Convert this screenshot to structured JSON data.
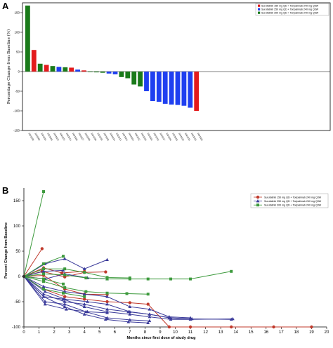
{
  "panels": {
    "a_label": "A",
    "b_label": "B"
  },
  "colors": {
    "red": "#e31a1c",
    "blue": "#1f3ff0",
    "green": "#1a7a1a",
    "redLine": "#c0392b",
    "blueLine": "#3b3b9a",
    "greenLine": "#3d9a3d"
  },
  "chart_data": [
    {
      "type": "bar",
      "panel": "A",
      "title": "",
      "xlabel": "",
      "ylabel": "Percentage Change from Baseline (%)",
      "ylim": [
        -150,
        175
      ],
      "yticks": [
        -150,
        -100,
        -50,
        0,
        50,
        100,
        150
      ],
      "legend": {
        "position": "top-right",
        "entries": [
          {
            "label": "Surufatinib 150 mg QD + Toripalimab 240 mg Q3W",
            "color": "red"
          },
          {
            "label": "Surufatinib 250 mg QD + Toripalimab 240 mg Q3W",
            "color": "blue"
          },
          {
            "label": "Surufatinib 300 mg QD + Toripalimab 240 mg Q3W",
            "color": "green"
          }
        ]
      },
      "bars": [
        {
          "id": "1001005",
          "value": 168,
          "color": "green"
        },
        {
          "id": "1001002",
          "value": 55,
          "color": "red"
        },
        {
          "id": "1001031",
          "value": 20,
          "color": "green"
        },
        {
          "id": "1001025",
          "value": 17,
          "color": "red"
        },
        {
          "id": "1001023",
          "value": 14,
          "color": "green"
        },
        {
          "id": "1001021",
          "value": 12,
          "color": "blue"
        },
        {
          "id": "1001014",
          "value": 11,
          "color": "green"
        },
        {
          "id": "1001006",
          "value": 10,
          "color": "red"
        },
        {
          "id": "1001027",
          "value": 5,
          "color": "blue"
        },
        {
          "id": "1001009",
          "value": 3,
          "color": "red"
        },
        {
          "id": "1001030",
          "value": -1,
          "color": "green"
        },
        {
          "id": "1001032",
          "value": -2,
          "color": "green"
        },
        {
          "id": "1001028",
          "value": -3,
          "color": "green"
        },
        {
          "id": "1001034",
          "value": -5,
          "color": "blue"
        },
        {
          "id": "1001013",
          "value": -7,
          "color": "blue"
        },
        {
          "id": "1001024",
          "value": -14,
          "color": "green"
        },
        {
          "id": "1001004",
          "value": -17,
          "color": "green"
        },
        {
          "id": "1001012",
          "value": -33,
          "color": "green"
        },
        {
          "id": "1001033",
          "value": -38,
          "color": "green"
        },
        {
          "id": "1001001",
          "value": -50,
          "color": "blue"
        },
        {
          "id": "1001016",
          "value": -75,
          "color": "blue"
        },
        {
          "id": "1001017",
          "value": -77,
          "color": "blue"
        },
        {
          "id": "1001020",
          "value": -82,
          "color": "blue"
        },
        {
          "id": "1001019",
          "value": -84,
          "color": "blue"
        },
        {
          "id": "1001018",
          "value": -85,
          "color": "blue"
        },
        {
          "id": "1001015",
          "value": -87,
          "color": "blue"
        },
        {
          "id": "1001010",
          "value": -92,
          "color": "blue"
        },
        {
          "id": "1001003",
          "value": -100,
          "color": "red"
        }
      ]
    },
    {
      "type": "line",
      "panel": "B",
      "title": "",
      "xlabel": "Months since first dose of study drug",
      "ylabel": "Percent Change from Baseline",
      "xlim": [
        0,
        20
      ],
      "ylim": [
        -100,
        175
      ],
      "xticks": [
        0,
        1,
        2,
        3,
        4,
        5,
        6,
        7,
        8,
        9,
        10,
        11,
        12,
        13,
        14,
        15,
        16,
        17,
        18,
        19,
        20
      ],
      "yticks": [
        -100,
        -50,
        0,
        50,
        100,
        150
      ],
      "legend": {
        "position": "top-right",
        "entries": [
          {
            "label": "Surufatinib 150 mg QD + Toripalimab 240 mg Q3W",
            "color": "redLine",
            "marker": "circle"
          },
          {
            "label": "Surufatinib 250 mg QD + Toripalimab 240 mg Q3W",
            "color": "blueLine",
            "marker": "triangle"
          },
          {
            "label": "Surufatinib 300 mg QD + Toripalimab 240 mg Q3W",
            "color": "greenLine",
            "marker": "square"
          }
        ]
      },
      "series": [
        {
          "color": "redLine",
          "marker": "circle",
          "x": [
            0,
            1.2
          ],
          "y": [
            0,
            55
          ]
        },
        {
          "color": "redLine",
          "marker": "circle",
          "x": [
            0,
            1.3,
            2.5,
            4
          ],
          "y": [
            0,
            17,
            7,
            10
          ]
        },
        {
          "color": "redLine",
          "marker": "circle",
          "x": [
            0,
            1.2,
            2.7,
            4,
            5.4
          ],
          "y": [
            0,
            10,
            -1,
            8,
            9
          ]
        },
        {
          "color": "redLine",
          "marker": "circle",
          "x": [
            0,
            1.3,
            2.7,
            4,
            5.5
          ],
          "y": [
            0,
            2,
            -25,
            -35,
            -36
          ]
        },
        {
          "color": "redLine",
          "marker": "circle",
          "x": [
            0,
            1.3,
            2.7,
            4,
            5.5,
            7,
            8.2,
            9.6,
            11,
            13.7,
            16.5,
            19
          ],
          "y": [
            0,
            -25,
            -40,
            -45,
            -50,
            -52,
            -55,
            -100,
            -100,
            -100,
            -100,
            -100
          ]
        },
        {
          "color": "blueLine",
          "marker": "triangle",
          "x": [
            0,
            1.4,
            2.7,
            4,
            5.5
          ],
          "y": [
            0,
            25,
            35,
            15,
            33
          ]
        },
        {
          "color": "blueLine",
          "marker": "triangle",
          "x": [
            0,
            1.3,
            2.6
          ],
          "y": [
            0,
            10,
            12
          ]
        },
        {
          "color": "blueLine",
          "marker": "triangle",
          "x": [
            0,
            1.4,
            2.7,
            4.2,
            5.5
          ],
          "y": [
            0,
            -5,
            5,
            -3,
            -5
          ]
        },
        {
          "color": "blueLine",
          "marker": "triangle",
          "x": [
            0,
            1.3,
            2.7,
            4,
            5.5,
            7,
            8.3,
            9.6,
            11
          ],
          "y": [
            0,
            -20,
            -30,
            -35,
            -40,
            -60,
            -65,
            -80,
            -82
          ]
        },
        {
          "color": "blueLine",
          "marker": "triangle",
          "x": [
            0,
            1.4,
            2.7,
            4.2,
            5.5,
            7,
            8.3,
            9.6,
            11
          ],
          "y": [
            0,
            -30,
            -45,
            -50,
            -55,
            -70,
            -75,
            -82,
            -85
          ]
        },
        {
          "color": "blueLine",
          "marker": "triangle",
          "x": [
            0,
            1.3,
            2.7,
            4,
            5.5,
            6.9,
            8.3,
            9.7,
            11.1,
            13.7
          ],
          "y": [
            0,
            -35,
            -50,
            -55,
            -65,
            -70,
            -75,
            -82,
            -84,
            -85
          ]
        },
        {
          "color": "blueLine",
          "marker": "triangle",
          "x": [
            0,
            1.3,
            2.6,
            4,
            5.5,
            7,
            8.3,
            9.7,
            11,
            13.8
          ],
          "y": [
            0,
            -40,
            -45,
            -60,
            -70,
            -75,
            -80,
            -85,
            -85,
            -84
          ]
        },
        {
          "color": "blueLine",
          "marker": "triangle",
          "x": [
            0,
            1.4,
            2.7,
            4.1,
            5.5,
            7,
            8.3
          ],
          "y": [
            0,
            -50,
            -55,
            -70,
            -82,
            -86,
            -88
          ]
        },
        {
          "color": "blueLine",
          "marker": "triangle",
          "x": [
            0,
            1.3,
            2.7,
            4,
            5.4,
            6.9,
            8.2
          ],
          "y": [
            0,
            -40,
            -60,
            -75,
            -85,
            -90,
            -92
          ]
        },
        {
          "color": "blueLine",
          "marker": "triangle",
          "x": [
            0,
            1.4,
            2.8,
            4.2,
            5.5
          ],
          "y": [
            0,
            -55,
            -65,
            -70,
            -72
          ]
        },
        {
          "color": "greenLine",
          "marker": "square",
          "x": [
            0,
            1.3
          ],
          "y": [
            0,
            168
          ]
        },
        {
          "color": "greenLine",
          "marker": "square",
          "x": [
            0,
            1.3,
            2.6
          ],
          "y": [
            0,
            25,
            40
          ]
        },
        {
          "color": "greenLine",
          "marker": "square",
          "x": [
            0,
            1.3,
            2.7,
            4,
            5.5,
            7
          ],
          "y": [
            0,
            15,
            15,
            8,
            -2,
            -3
          ]
        },
        {
          "color": "greenLine",
          "marker": "square",
          "x": [
            0,
            1.3,
            2.7,
            4.1,
            5.5,
            7,
            8.2,
            9.7,
            11,
            13.7
          ],
          "y": [
            0,
            5,
            3,
            -3,
            -5,
            -5,
            -5,
            -5,
            -5,
            10
          ]
        },
        {
          "color": "greenLine",
          "marker": "square",
          "x": [
            0,
            1.3,
            2.6
          ],
          "y": [
            0,
            -5,
            -15
          ]
        },
        {
          "color": "greenLine",
          "marker": "square",
          "x": [
            0,
            1.3,
            2.7,
            4.1,
            5.5,
            6.8,
            8.2
          ],
          "y": [
            0,
            -10,
            -22,
            -30,
            -33,
            -34,
            -35
          ]
        },
        {
          "color": "greenLine",
          "marker": "square",
          "x": [
            0,
            1.3,
            2.6,
            4
          ],
          "y": [
            0,
            -25,
            -33,
            -40
          ]
        }
      ]
    }
  ]
}
